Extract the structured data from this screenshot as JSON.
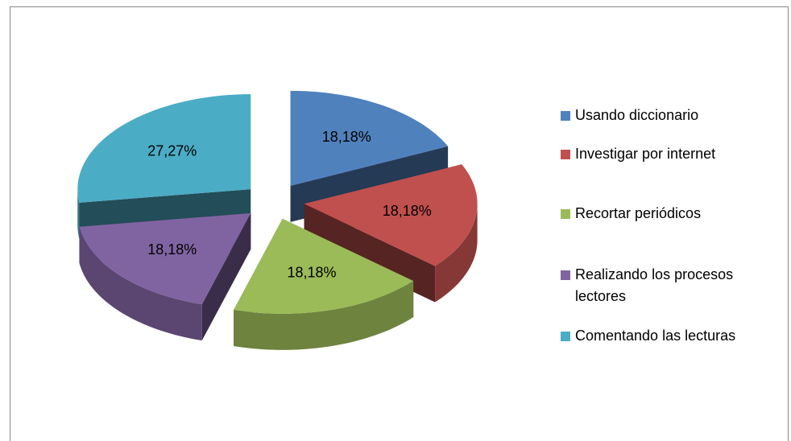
{
  "chart_data": {
    "type": "pie3d",
    "categories": [
      "Usando diccionario",
      "Investigar por internet",
      "Recortar periódicos",
      "Realizando los procesos lectores",
      "Comentando las lecturas"
    ],
    "values": [
      18.18,
      18.18,
      18.18,
      18.18,
      27.27
    ],
    "value_labels": [
      "18,18%",
      "18,18%",
      "18,18%",
      "18,18%",
      "27,27%"
    ],
    "colors": [
      "#4f81bd",
      "#c0504d",
      "#9bbb59",
      "#8064a2",
      "#4bacc6"
    ],
    "legend": "right"
  }
}
